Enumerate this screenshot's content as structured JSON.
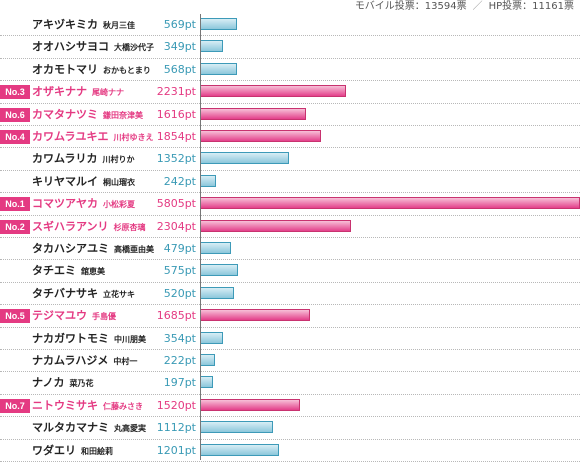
{
  "header": {
    "mobile_label": "モバイル投票：13594票",
    "separator": "／",
    "hp_label": "HP投票：11161票"
  },
  "colors": {
    "highlight": "#e43a82",
    "normal_points": "#3a9ab5"
  },
  "chart_data": {
    "type": "bar",
    "orientation": "horizontal",
    "unit": "pt",
    "xlim": [
      0,
      5805
    ],
    "rows": [
      {
        "name": "アキヅキミカ",
        "name_kanji": "秋月三佳",
        "value": 569,
        "label": "569pt",
        "rank_badge": ""
      },
      {
        "name": "オオハシサヨコ",
        "name_kanji": "大橋沙代子",
        "value": 349,
        "label": "349pt",
        "rank_badge": ""
      },
      {
        "name": "オカモトマリ",
        "name_kanji": "おかもとまり",
        "value": 568,
        "label": "568pt",
        "rank_badge": ""
      },
      {
        "name": "オザキナナ",
        "name_kanji": "尾崎ナナ",
        "value": 2231,
        "label": "2231pt",
        "rank_badge": "No.3"
      },
      {
        "name": "カマタナツミ",
        "name_kanji": "鎌田奈津美",
        "value": 1616,
        "label": "1616pt",
        "rank_badge": "No.6"
      },
      {
        "name": "カワムラユキエ",
        "name_kanji": "川村ゆきえ",
        "value": 1854,
        "label": "1854pt",
        "rank_badge": "No.4"
      },
      {
        "name": "カワムラリカ",
        "name_kanji": "川村りか",
        "value": 1352,
        "label": "1352pt",
        "rank_badge": ""
      },
      {
        "name": "キリヤマルイ",
        "name_kanji": "桐山瑠衣",
        "value": 242,
        "label": "242pt",
        "rank_badge": ""
      },
      {
        "name": "コマツアヤカ",
        "name_kanji": "小松彩夏",
        "value": 5805,
        "label": "5805pt",
        "rank_badge": "No.1"
      },
      {
        "name": "スギハラアンリ",
        "name_kanji": "杉原杏璃",
        "value": 2304,
        "label": "2304pt",
        "rank_badge": "No.2"
      },
      {
        "name": "タカハシアユミ",
        "name_kanji": "高橋亜由美",
        "value": 479,
        "label": "479pt",
        "rank_badge": ""
      },
      {
        "name": "タチエミ",
        "name_kanji": "舘恵美",
        "value": 575,
        "label": "575pt",
        "rank_badge": ""
      },
      {
        "name": "タチバナサキ",
        "name_kanji": "立花サキ",
        "value": 520,
        "label": "520pt",
        "rank_badge": ""
      },
      {
        "name": "テジマユウ",
        "name_kanji": "手島優",
        "value": 1685,
        "label": "1685pt",
        "rank_badge": "No.5"
      },
      {
        "name": "ナカガワトモミ",
        "name_kanji": "中川朋美",
        "value": 354,
        "label": "354pt",
        "rank_badge": ""
      },
      {
        "name": "ナカムラハジメ",
        "name_kanji": "中村一",
        "value": 222,
        "label": "222pt",
        "rank_badge": ""
      },
      {
        "name": "ナノカ",
        "name_kanji": "菜乃花",
        "value": 197,
        "label": "197pt",
        "rank_badge": ""
      },
      {
        "name": "ニトウミサキ",
        "name_kanji": "仁藤みさき",
        "value": 1520,
        "label": "1520pt",
        "rank_badge": "No.7"
      },
      {
        "name": "マルタカマナミ",
        "name_kanji": "丸高愛実",
        "value": 1112,
        "label": "1112pt",
        "rank_badge": ""
      },
      {
        "name": "ワダエリ",
        "name_kanji": "和田絵莉",
        "value": 1201,
        "label": "1201pt",
        "rank_badge": ""
      }
    ]
  }
}
